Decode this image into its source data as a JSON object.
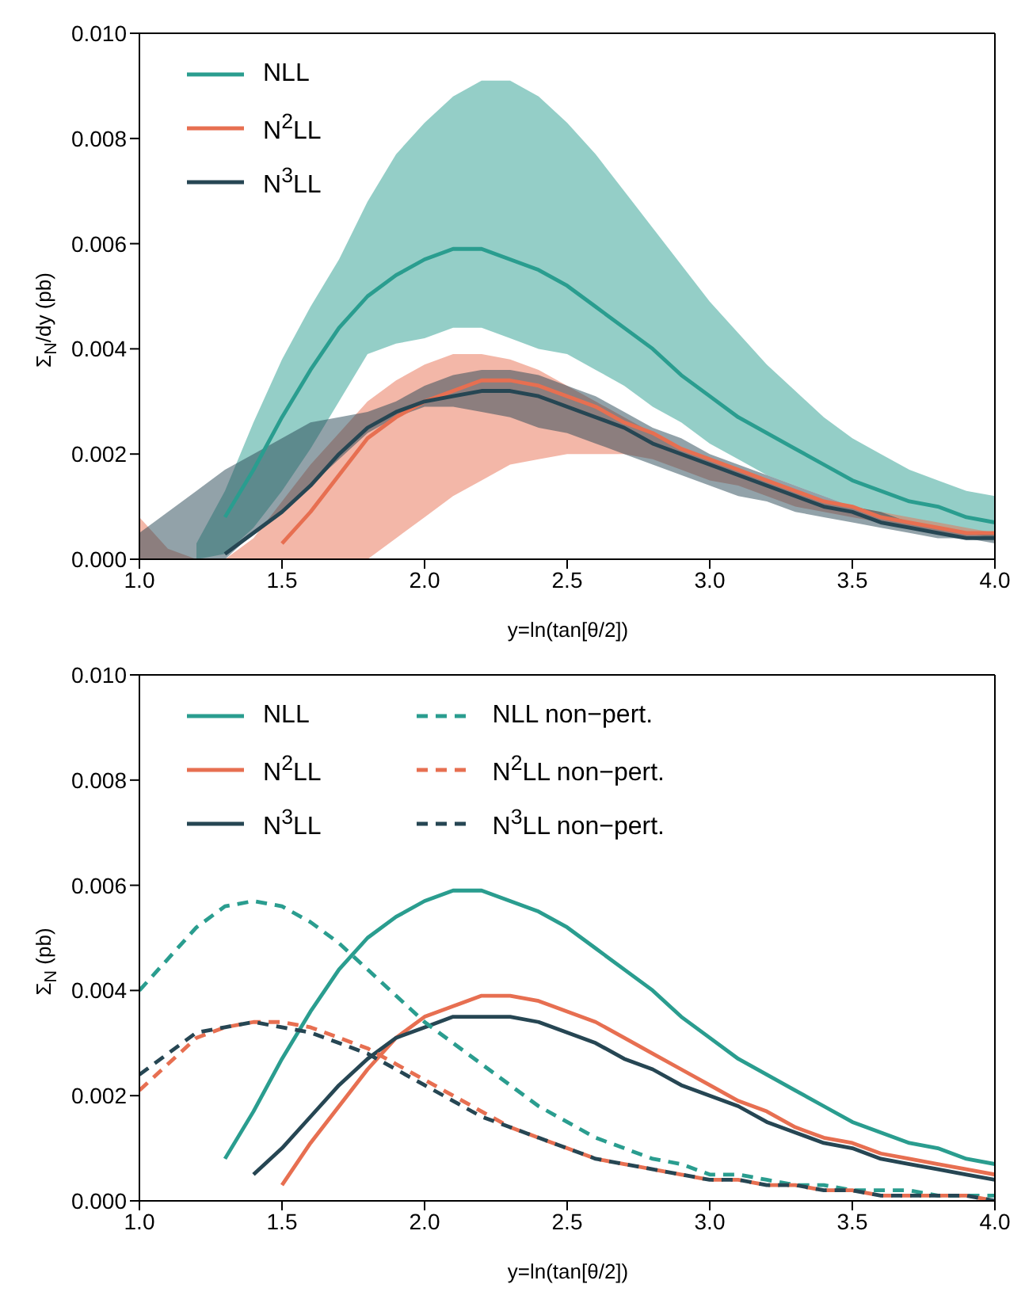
{
  "chart_data": [
    {
      "type": "line",
      "xlabel": "y=ln(tan[θ/2])",
      "ylabel": "Σ$_{N}$/dy (pb)",
      "legend": "top left",
      "x": [
        1.0,
        1.1,
        1.2,
        1.3,
        1.4,
        1.5,
        1.6,
        1.7,
        1.8,
        1.9,
        2.0,
        2.1,
        2.2,
        2.3,
        2.4,
        2.5,
        2.6,
        2.7,
        2.8,
        2.9,
        3.0,
        3.1,
        3.2,
        3.3,
        3.4,
        3.5,
        3.6,
        3.7,
        3.8,
        3.9,
        4.0
      ],
      "xlim": [
        1,
        4
      ],
      "ylim": [
        0,
        0.01
      ],
      "xticks": [
        {
          "value": 1,
          "label": "1.0"
        },
        1.5,
        {
          "value": 2,
          "label": "2.0"
        },
        2.5,
        {
          "value": 3,
          "label": "3.0"
        },
        3.5,
        {
          "value": 4,
          "label": "4.0"
        }
      ],
      "yticks": [
        {
          "value": 0,
          "label": "0.000"
        },
        {
          "value": 0.002,
          "label": "0.002"
        },
        {
          "value": 0.004,
          "label": "0.004"
        },
        {
          "value": 0.006,
          "label": "0.006"
        },
        {
          "value": 0.008,
          "label": "0.008"
        },
        {
          "value": 0.01,
          "label": "0.010"
        }
      ],
      "series": [
        {
          "name": "NLL",
          "color": "#2a9d8f",
          "values": [
            null,
            null,
            null,
            0.0008,
            0.0017,
            0.0027,
            0.0036,
            0.0044,
            0.005,
            0.0054,
            0.0057,
            0.0059,
            0.0059,
            0.0057,
            0.0055,
            0.0052,
            0.0048,
            0.0044,
            0.004,
            0.0035,
            0.0031,
            0.0027,
            0.0024,
            0.0021,
            0.0018,
            0.0015,
            0.0013,
            0.0011,
            0.001,
            0.0008,
            0.0007
          ],
          "upper": [
            null,
            null,
            0.0003,
            0.0013,
            0.0026,
            0.0038,
            0.0048,
            0.0057,
            0.0068,
            0.0077,
            0.0083,
            0.0088,
            0.0091,
            0.0091,
            0.0088,
            0.0083,
            0.0077,
            0.007,
            0.0063,
            0.0056,
            0.0049,
            0.0043,
            0.0037,
            0.0032,
            0.0027,
            0.0023,
            0.002,
            0.0017,
            0.0015,
            0.0013,
            0.0012
          ],
          "lower": [
            null,
            null,
            0,
            0.0001,
            0.0006,
            0.0013,
            0.0021,
            0.003,
            0.0039,
            0.0041,
            0.0042,
            0.0044,
            0.0044,
            0.0042,
            0.004,
            0.0039,
            0.0036,
            0.0033,
            0.0029,
            0.0026,
            0.0022,
            0.0019,
            0.0016,
            0.0014,
            0.0012,
            0.001,
            0.0008,
            0.0007,
            0.0006,
            0.0005,
            0.0004
          ]
        },
        {
          "name": "N$^{2}$LL",
          "color": "#e76f51",
          "values": [
            null,
            null,
            null,
            null,
            null,
            0.0003,
            0.0009,
            0.0016,
            0.0023,
            0.0027,
            0.003,
            0.0032,
            0.0034,
            0.0034,
            0.0033,
            0.0031,
            0.0029,
            0.0026,
            0.0024,
            0.0021,
            0.0019,
            0.0017,
            0.0015,
            0.0013,
            0.0011,
            0.001,
            0.0008,
            0.0007,
            0.0006,
            0.0005,
            0.0005
          ],
          "upper": [
            0.0008,
            0.0002,
            0,
            0,
            0.0004,
            0.0011,
            0.0018,
            0.0024,
            0.003,
            0.0034,
            0.0037,
            0.0039,
            0.0039,
            0.0038,
            0.0036,
            0.0033,
            0.003,
            0.0027,
            0.0024,
            0.0021,
            0.0019,
            0.0017,
            0.0015,
            0.0013,
            0.0011,
            0.001,
            0.0009,
            0.0008,
            0.0007,
            0.0006,
            0.0005
          ],
          "lower": [
            0,
            0,
            0,
            0,
            0,
            0,
            0,
            0,
            0,
            0.0004,
            0.0008,
            0.0012,
            0.0015,
            0.0018,
            0.0019,
            0.002,
            0.002,
            0.002,
            0.0019,
            0.0017,
            0.0015,
            0.0014,
            0.0012,
            0.001,
            0.0009,
            0.0008,
            0.0007,
            0.0006,
            0.0005,
            0.0004,
            0.0004
          ]
        },
        {
          "name": "N$^{3}$LL",
          "color": "#264653",
          "values": [
            null,
            null,
            null,
            0.0001,
            0.0005,
            0.0009,
            0.0014,
            0.002,
            0.0025,
            0.0028,
            0.003,
            0.0031,
            0.0032,
            0.0032,
            0.0031,
            0.0029,
            0.0027,
            0.0025,
            0.0022,
            0.002,
            0.0018,
            0.0016,
            0.0014,
            0.0012,
            0.001,
            0.0009,
            0.0007,
            0.0006,
            0.0005,
            0.0004,
            0.0004
          ],
          "upper": [
            0.0005,
            0.0009,
            0.0013,
            0.0017,
            0.002,
            0.0023,
            0.0026,
            0.0027,
            0.0028,
            0.003,
            0.0033,
            0.0035,
            0.0036,
            0.0036,
            0.0035,
            0.0033,
            0.0031,
            0.0028,
            0.0025,
            0.0023,
            0.002,
            0.0018,
            0.0016,
            0.0014,
            0.0012,
            0.001,
            0.0009,
            0.0007,
            0.0006,
            0.0005,
            0.0005
          ],
          "lower": [
            0,
            0,
            0,
            0,
            0.0005,
            0.0009,
            0.0014,
            0.0019,
            0.0024,
            0.0027,
            0.0029,
            0.0029,
            0.0028,
            0.0027,
            0.0025,
            0.0024,
            0.0022,
            0.002,
            0.0018,
            0.0016,
            0.0014,
            0.0012,
            0.0011,
            0.0009,
            0.0008,
            0.0007,
            0.0006,
            0.0005,
            0.0004,
            0.0004,
            0.0003
          ]
        }
      ]
    },
    {
      "type": "line",
      "xlabel": "y=ln(tan[θ/2])",
      "ylabel": "Σ$_{N}$ (pb)",
      "legend": "top left",
      "x": [
        1.0,
        1.1,
        1.2,
        1.3,
        1.4,
        1.5,
        1.6,
        1.7,
        1.8,
        1.9,
        2.0,
        2.1,
        2.2,
        2.3,
        2.4,
        2.5,
        2.6,
        2.7,
        2.8,
        2.9,
        3.0,
        3.1,
        3.2,
        3.3,
        3.4,
        3.5,
        3.6,
        3.7,
        3.8,
        3.9,
        4.0
      ],
      "xlim": [
        1,
        4
      ],
      "ylim": [
        0,
        0.01
      ],
      "xticks": [
        {
          "value": 1,
          "label": "1.0"
        },
        1.5,
        {
          "value": 2,
          "label": "2.0"
        },
        2.5,
        {
          "value": 3,
          "label": "3.0"
        },
        3.5,
        {
          "value": 4,
          "label": "4.0"
        }
      ],
      "yticks": [
        {
          "value": 0,
          "label": "0.000"
        },
        {
          "value": 0.002,
          "label": "0.002"
        },
        {
          "value": 0.004,
          "label": "0.004"
        },
        {
          "value": 0.006,
          "label": "0.006"
        },
        {
          "value": 0.008,
          "label": "0.008"
        },
        {
          "value": 0.01,
          "label": "0.010"
        }
      ],
      "series": [
        {
          "name": "NLL",
          "color": "#2a9d8f",
          "values": [
            null,
            null,
            null,
            0.0008,
            0.0017,
            0.0027,
            0.0036,
            0.0044,
            0.005,
            0.0054,
            0.0057,
            0.0059,
            0.0059,
            0.0057,
            0.0055,
            0.0052,
            0.0048,
            0.0044,
            0.004,
            0.0035,
            0.0031,
            0.0027,
            0.0024,
            0.0021,
            0.0018,
            0.0015,
            0.0013,
            0.0011,
            0.001,
            0.0008,
            0.0007
          ]
        },
        {
          "name": "N$^{2}$LL",
          "color": "#e76f51",
          "values": [
            null,
            null,
            null,
            null,
            null,
            0.0003,
            0.0011,
            0.0018,
            0.0025,
            0.0031,
            0.0035,
            0.0037,
            0.0039,
            0.0039,
            0.0038,
            0.0036,
            0.0034,
            0.0031,
            0.0028,
            0.0025,
            0.0022,
            0.0019,
            0.0017,
            0.0014,
            0.0012,
            0.0011,
            0.0009,
            0.0008,
            0.0007,
            0.0006,
            0.0005
          ]
        },
        {
          "name": "N$^{3}$LL",
          "color": "#264653",
          "values": [
            null,
            null,
            null,
            null,
            0.0005,
            0.001,
            0.0016,
            0.0022,
            0.0027,
            0.0031,
            0.0033,
            0.0035,
            0.0035,
            0.0035,
            0.0034,
            0.0032,
            0.003,
            0.0027,
            0.0025,
            0.0022,
            0.002,
            0.0018,
            0.0015,
            0.0013,
            0.0011,
            0.001,
            0.0008,
            0.0007,
            0.0006,
            0.0005,
            0.0004
          ]
        },
        {
          "name": "NLL non−pert.",
          "color": "#2a9d8f",
          "line_style": "dashed",
          "values": [
            0.004,
            0.0046,
            0.0052,
            0.0056,
            0.0057,
            0.0056,
            0.0053,
            0.0049,
            0.0044,
            0.0039,
            0.0034,
            0.003,
            0.0026,
            0.0022,
            0.0018,
            0.0015,
            0.0012,
            0.001,
            0.0008,
            0.0007,
            0.0005,
            0.0005,
            0.0004,
            0.0003,
            0.0003,
            0.0002,
            0.0002,
            0.0002,
            0.0001,
            0.0001,
            0.0001
          ]
        },
        {
          "name": "N$^{2}$LL non−pert.",
          "color": "#e76f51",
          "line_style": "dashed",
          "values": [
            0.0021,
            0.0026,
            0.0031,
            0.0033,
            0.0034,
            0.0034,
            0.0033,
            0.0031,
            0.0029,
            0.0026,
            0.0023,
            0.002,
            0.0017,
            0.0014,
            0.0012,
            0.001,
            0.0008,
            0.0007,
            0.0006,
            0.0005,
            0.0004,
            0.0004,
            0.0003,
            0.0003,
            0.0002,
            0.0002,
            0.0001,
            0.0001,
            0.0001,
            0.0001,
            0
          ]
        },
        {
          "name": "N$^{3}$LL non−pert.",
          "color": "#264653",
          "line_style": "dashed",
          "values": [
            0.0024,
            0.0028,
            0.0032,
            0.0033,
            0.0034,
            0.0033,
            0.0032,
            0.003,
            0.0028,
            0.0025,
            0.0022,
            0.0019,
            0.0016,
            0.0014,
            0.0012,
            0.001,
            0.0008,
            0.0007,
            0.0006,
            0.0005,
            0.0004,
            0.0004,
            0.0003,
            0.0003,
            0.0002,
            0.0002,
            0.0001,
            0.0001,
            0.0001,
            0.0001,
            0
          ]
        }
      ]
    }
  ]
}
